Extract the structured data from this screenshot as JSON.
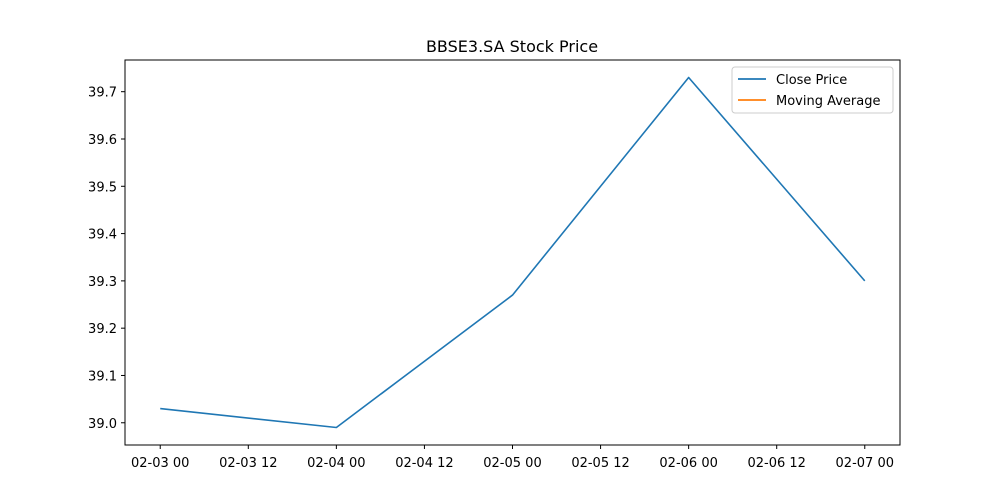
{
  "chart_data": {
    "type": "line",
    "title": "BBSE3.SA Stock Price",
    "xlabel": "",
    "ylabel": "",
    "x_tick_labels": [
      "02-03 00",
      "02-03 12",
      "02-04 00",
      "02-04 12",
      "02-05 00",
      "02-05 12",
      "02-06 00",
      "02-06 12",
      "02-07 00"
    ],
    "y_tick_labels": [
      "39.0",
      "39.1",
      "39.2",
      "39.3",
      "39.4",
      "39.5",
      "39.6",
      "39.7"
    ],
    "y_ticks": [
      39.0,
      39.1,
      39.2,
      39.3,
      39.4,
      39.5,
      39.6,
      39.7
    ],
    "x_ticks": [
      "2024-02-03 00:00",
      "2024-02-03 12:00",
      "2024-02-04 00:00",
      "2024-02-04 12:00",
      "2024-02-05 00:00",
      "2024-02-05 12:00",
      "2024-02-06 00:00",
      "2024-02-06 12:00",
      "2024-02-07 00:00"
    ],
    "xlim": [
      "2024-02-02 19:12",
      "2024-02-07 04:48"
    ],
    "ylim": [
      38.953,
      39.767
    ],
    "grid": false,
    "legend_position": "top-right",
    "series": [
      {
        "name": "Close Price",
        "color": "#1f77b4",
        "x": [
          "2024-02-03 00:00",
          "2024-02-04 00:00",
          "2024-02-05 00:00",
          "2024-02-06 00:00",
          "2024-02-07 00:00"
        ],
        "y": [
          39.03,
          38.99,
          39.27,
          39.73,
          39.3
        ]
      },
      {
        "name": "Moving Average",
        "color": "#ff7f0e",
        "x": [],
        "y": []
      }
    ]
  }
}
